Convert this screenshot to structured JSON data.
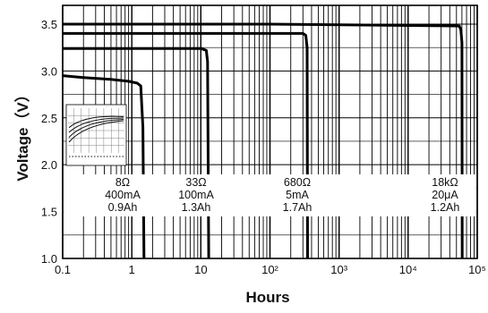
{
  "chart_data": {
    "type": "line",
    "xscale": "log",
    "xlim": [
      0.1,
      100000
    ],
    "ylim": [
      1.0,
      3.7
    ],
    "grid": true,
    "xlabel": "Hours",
    "ylabel": "Voltage（V）",
    "x_tick_labels": [
      "0.1",
      "1",
      "10",
      "10²",
      "10³",
      "10⁴",
      "10⁵"
    ],
    "x_ticks": [
      0.1,
      1,
      10,
      100,
      1000,
      10000,
      100000
    ],
    "y_tick_labels": [
      "1.0",
      "1.5",
      "2.0",
      "2.5",
      "3.0",
      "3.5"
    ],
    "y_ticks": [
      1.0,
      1.5,
      2.0,
      2.5,
      3.0,
      3.5
    ],
    "series": [
      {
        "load": "8Ω",
        "current": "400mA",
        "capacity": "0.9Ah",
        "x": [
          0.1,
          0.2,
          0.5,
          0.9,
          1.2,
          1.35,
          1.45,
          1.5
        ],
        "y": [
          2.95,
          2.93,
          2.91,
          2.89,
          2.87,
          2.84,
          2.4,
          1.0
        ]
      },
      {
        "load": "33Ω",
        "current": "100mA",
        "capacity": "1.3Ah",
        "x": [
          0.1,
          1,
          10,
          12,
          12.5,
          13
        ],
        "y": [
          3.24,
          3.24,
          3.24,
          3.22,
          3.1,
          1.0
        ]
      },
      {
        "load": "680Ω",
        "current": "5mA",
        "capacity": "1.7Ah",
        "x": [
          0.1,
          10,
          300,
          330,
          345,
          350
        ],
        "y": [
          3.4,
          3.4,
          3.4,
          3.38,
          3.25,
          1.0
        ]
      },
      {
        "load": "18kΩ",
        "current": "20μA",
        "capacity": "1.2Ah",
        "x": [
          0.1,
          100,
          55000,
          58000,
          60000,
          60500
        ],
        "y": [
          3.5,
          3.5,
          3.48,
          3.44,
          3.3,
          1.0
        ]
      }
    ]
  }
}
